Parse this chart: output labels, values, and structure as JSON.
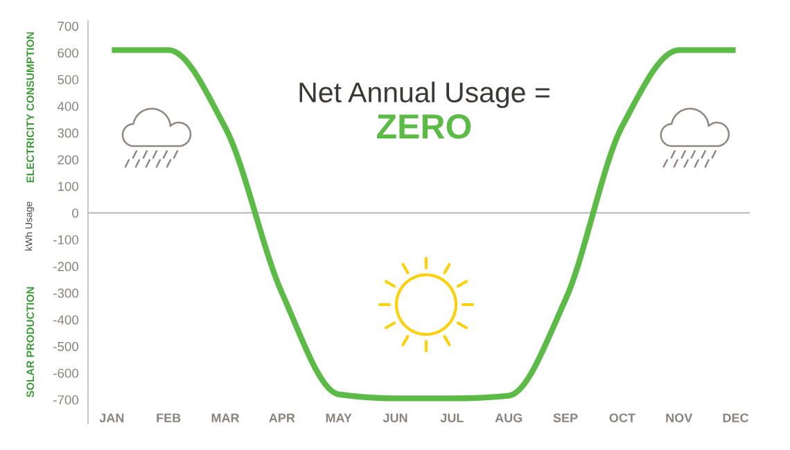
{
  "chart_data": {
    "type": "line",
    "title": "Net Annual Usage =",
    "subtitle": "ZERO",
    "ylabel": "kWh Usage",
    "annotations": [
      "ELECTRICITY CONSUMPTION",
      "SOLAR PRODUCTION"
    ],
    "categories": [
      "JAN",
      "FEB",
      "MAR",
      "APR",
      "MAY",
      "JUN",
      "JUL",
      "AUG",
      "SEP",
      "OCT",
      "NOV",
      "DEC"
    ],
    "series": [
      {
        "color": "#5cbb46",
        "values": [
          610,
          610,
          320,
          -300,
          -680,
          -695,
          -695,
          -685,
          -325,
          325,
          610,
          610
        ]
      }
    ],
    "ylim": [
      -790,
      720
    ],
    "yticks": [
      -700,
      -600,
      -500,
      -400,
      -300,
      -200,
      -100,
      0,
      100,
      200,
      300,
      400,
      500,
      600,
      700
    ],
    "ref_lines": [
      {
        "axis": "y",
        "value": 0,
        "color": "#b5b5b5"
      }
    ],
    "line_style": "solid"
  }
}
